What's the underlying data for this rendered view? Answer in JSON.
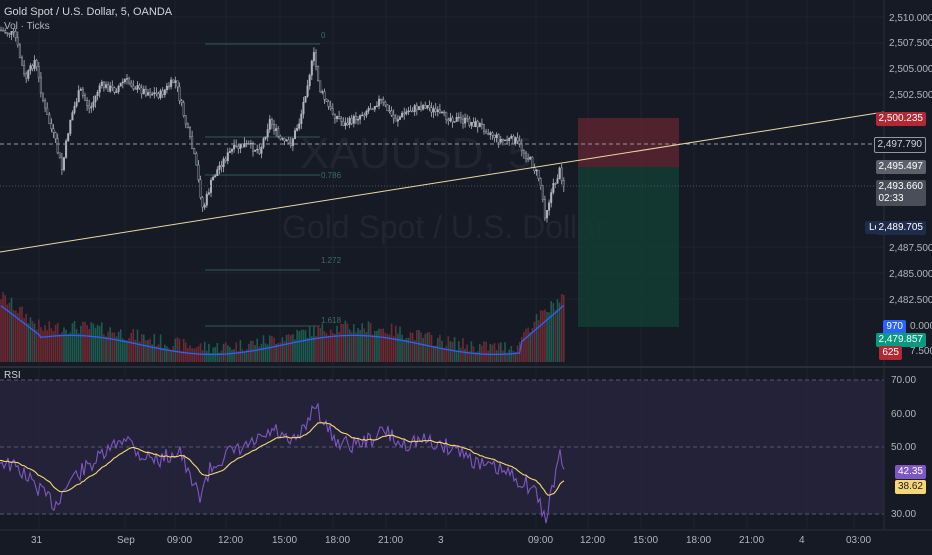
{
  "header": {
    "title": "Gold Spot / U.S. Dollar, 5, OANDA",
    "volume_label": "Vol · Ticks"
  },
  "watermark": {
    "symbol": "XAUUSD, 5",
    "name": "Gold Spot / U.S. Dollar"
  },
  "rsi_panel": {
    "label": "RSI"
  },
  "price_axis": [
    "2,510.000",
    "2,507.500",
    "2,505.000",
    "2,502.500",
    "2,487.500",
    "2,485.000",
    "2,482.500",
    "0.000",
    "7.500"
  ],
  "rsi_axis": [
    "70.00",
    "60.00",
    "50.00",
    "30.00"
  ],
  "time_axis": [
    "31",
    "Sep",
    "09:00",
    "12:00",
    "15:00",
    "18:00",
    "21:00",
    "3",
    "09:00",
    "12:00",
    "15:00",
    "18:00",
    "21:00",
    "4",
    "03:00"
  ],
  "fib_levels": [
    "0",
    "0.786",
    "1.272",
    "1.618"
  ],
  "price_tags": {
    "stop": "2,500.235",
    "dashed_level": "2,497.790",
    "entry": "2,495.497",
    "current": "2,493.660",
    "countdown": "02:33",
    "low_label": "Low",
    "low_value": "2,489.705",
    "target": "2,479.857",
    "vol1": "970",
    "vol2": "625",
    "rsi": "42.35",
    "rsi_ma": "38.62"
  },
  "colors": {
    "background": "#161a25",
    "bull_candle": "#b2b5be",
    "stop_zone": "#5a2430",
    "target_zone": "#103d33",
    "trendline": "#e8d9a8",
    "rsi_line": "#7e57c2",
    "rsi_ma": "#f7d774",
    "volume_ma": "#2962ff"
  }
}
